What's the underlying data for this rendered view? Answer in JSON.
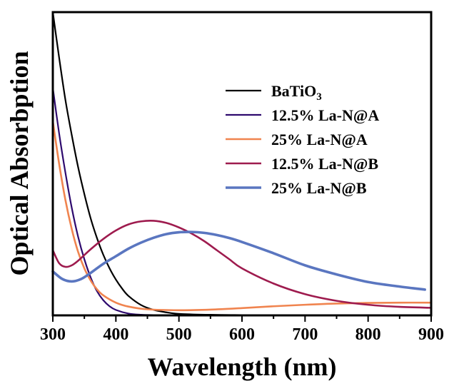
{
  "chart_data": {
    "type": "line",
    "title": "",
    "xlabel": "Wavelength (nm)",
    "ylabel": "Optical Absorbption",
    "xlim": [
      300,
      900
    ],
    "ylim": [
      0,
      1
    ],
    "xticks": [
      300,
      400,
      500,
      600,
      700,
      800,
      900
    ],
    "y_tick_labels_shown": false,
    "grid": false,
    "legend_position": "top-right",
    "series": [
      {
        "name": "BaTiO",
        "name_subscript": "3",
        "color": "#000000",
        "x": [
          300,
          310,
          320,
          330,
          340,
          350,
          360,
          370,
          380,
          390,
          400,
          410,
          420,
          440,
          460,
          480,
          500,
          550,
          600,
          700,
          800,
          900
        ],
        "y": [
          1.0,
          0.85,
          0.71,
          0.595,
          0.49,
          0.4,
          0.32,
          0.255,
          0.2,
          0.155,
          0.118,
          0.088,
          0.064,
          0.034,
          0.018,
          0.01,
          0.005,
          0.002,
          0.001,
          0.0,
          0.0,
          0.0
        ]
      },
      {
        "name": "12.5% La-N@A",
        "color": "#2e0a6e",
        "x": [
          300,
          310,
          320,
          330,
          340,
          350,
          360,
          370,
          380,
          390,
          400,
          420,
          440,
          460,
          500,
          600,
          700,
          800,
          900
        ],
        "y": [
          0.75,
          0.6,
          0.47,
          0.355,
          0.26,
          0.185,
          0.125,
          0.08,
          0.05,
          0.03,
          0.018,
          0.006,
          0.002,
          0.001,
          0.0,
          0.0,
          0.0,
          0.0,
          0.0
        ]
      },
      {
        "name": "25% La-N@A",
        "color": "#f0844f",
        "x": [
          300,
          310,
          320,
          330,
          340,
          350,
          360,
          370,
          380,
          400,
          420,
          450,
          500,
          550,
          600,
          650,
          700,
          750,
          800,
          850,
          900
        ],
        "y": [
          0.64,
          0.5,
          0.38,
          0.285,
          0.21,
          0.155,
          0.115,
          0.086,
          0.066,
          0.042,
          0.029,
          0.02,
          0.017,
          0.019,
          0.024,
          0.03,
          0.035,
          0.039,
          0.041,
          0.042,
          0.042
        ]
      },
      {
        "name": "12.5% La-N@B",
        "color": "#9e1b4e",
        "x": [
          300,
          310,
          320,
          330,
          340,
          360,
          380,
          400,
          420,
          440,
          460,
          480,
          500,
          520,
          540,
          560,
          580,
          600,
          650,
          700,
          750,
          800,
          850,
          900
        ],
        "y": [
          0.215,
          0.172,
          0.16,
          0.165,
          0.18,
          0.218,
          0.252,
          0.28,
          0.3,
          0.31,
          0.312,
          0.305,
          0.29,
          0.27,
          0.245,
          0.215,
          0.185,
          0.155,
          0.105,
          0.07,
          0.048,
          0.035,
          0.028,
          0.025
        ]
      },
      {
        "name": "25% La-N@B",
        "color": "#5a76c0",
        "x": [
          300,
          315,
          330,
          345,
          360,
          380,
          400,
          420,
          440,
          460,
          480,
          500,
          520,
          540,
          560,
          580,
          600,
          650,
          700,
          750,
          800,
          850,
          890
        ],
        "y": [
          0.145,
          0.12,
          0.112,
          0.12,
          0.14,
          0.17,
          0.195,
          0.22,
          0.24,
          0.256,
          0.268,
          0.274,
          0.275,
          0.272,
          0.265,
          0.255,
          0.242,
          0.205,
          0.165,
          0.135,
          0.11,
          0.095,
          0.085
        ]
      }
    ]
  }
}
